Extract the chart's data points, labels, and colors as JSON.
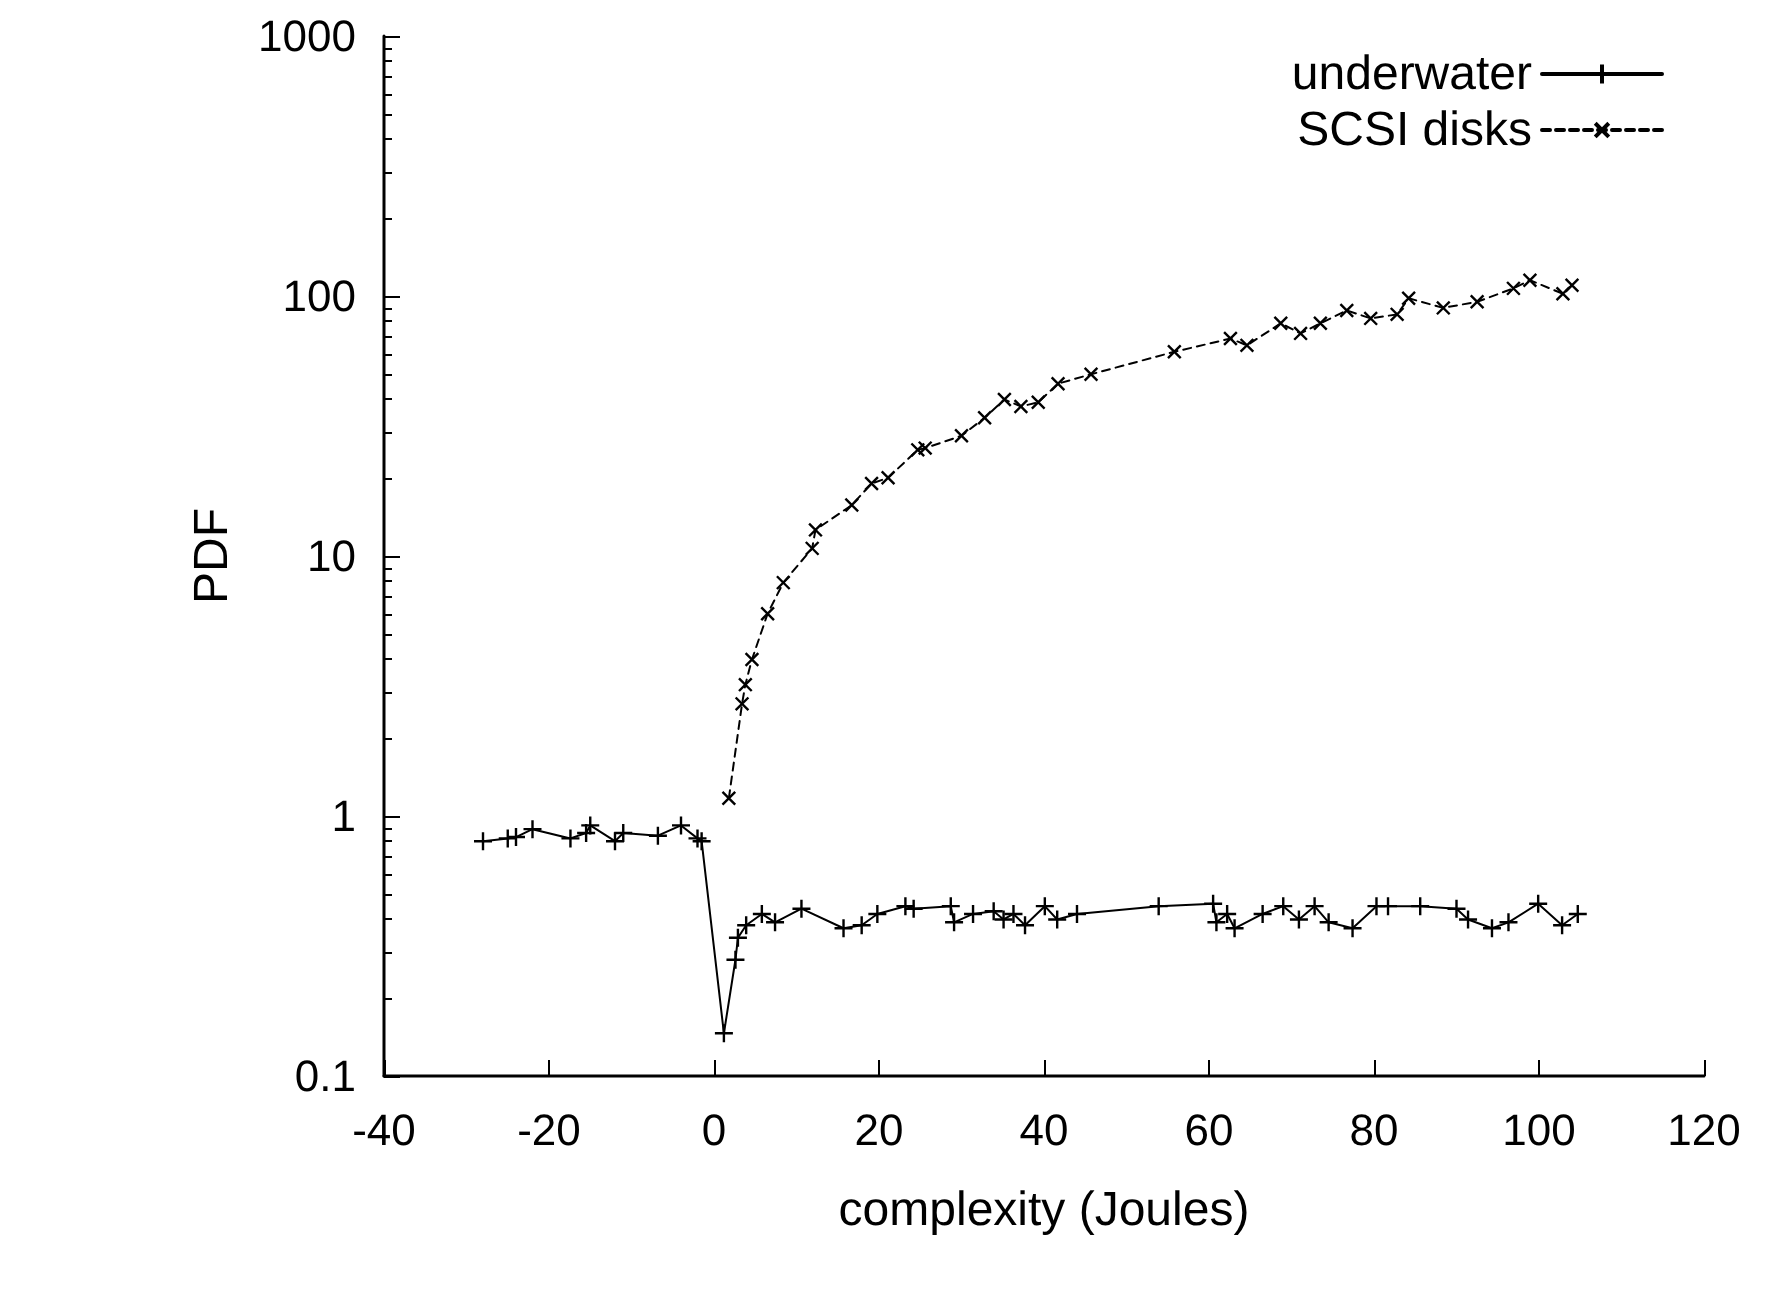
{
  "chart_data": {
    "type": "line",
    "xlabel": "complexity (Joules)",
    "ylabel": "PDF",
    "xlim": [
      -40,
      120
    ],
    "xticks": [
      -40,
      -20,
      0,
      20,
      40,
      60,
      80,
      100,
      120
    ],
    "ylim": [
      0.1,
      1000
    ],
    "yticks": [
      0.1,
      1,
      10,
      100,
      1000
    ],
    "log": "y",
    "grid": false,
    "legend": "top right",
    "series": [
      {
        "name": "underwater",
        "color": "#000000",
        "line_style": "solid",
        "marker": "cross",
        "x": [
          -28,
          -25,
          -24,
          -22,
          -17.4,
          -15.5,
          -15,
          -12,
          -11,
          -6.8,
          -4,
          -2,
          -1.5,
          1.2,
          2.6,
          2.9,
          3.9,
          5.8,
          7.4,
          10.6,
          15.7,
          17.9,
          19.8,
          23.2,
          24.2,
          28.7,
          29.1,
          31.4,
          33.9,
          35.1,
          36.3,
          37.7,
          40.1,
          41.6,
          44,
          53.9,
          60.5,
          60.9,
          62.2,
          63.1,
          66.5,
          69,
          70.9,
          72.8,
          74.5,
          77.4,
          80.3,
          81.7,
          85.6,
          90,
          91.4,
          94.3,
          96.3,
          99.9,
          102.8,
          104.7
        ],
        "values": [
          0.8,
          0.82,
          0.83,
          0.89,
          0.82,
          0.86,
          0.92,
          0.8,
          0.86,
          0.84,
          0.92,
          0.82,
          0.8,
          0.146,
          0.28,
          0.34,
          0.38,
          0.42,
          0.39,
          0.44,
          0.37,
          0.38,
          0.42,
          0.45,
          0.44,
          0.45,
          0.39,
          0.42,
          0.43,
          0.4,
          0.42,
          0.38,
          0.45,
          0.4,
          0.42,
          0.45,
          0.46,
          0.39,
          0.42,
          0.37,
          0.42,
          0.45,
          0.4,
          0.45,
          0.39,
          0.37,
          0.45,
          0.45,
          0.45,
          0.44,
          0.4,
          0.37,
          0.39,
          0.46,
          0.38,
          0.42
        ]
      },
      {
        "name": "SCSI disks",
        "color": "#000000",
        "line_style": "dashed",
        "marker": "cross",
        "x": [
          1.8,
          3.4,
          3.8,
          4.6,
          6.5,
          8.4,
          11.9,
          12.3,
          16.7,
          19.1,
          21.1,
          24.7,
          25.6,
          30,
          32.8,
          35.2,
          37.2,
          39.3,
          41.7,
          45.7,
          55.8,
          62.6,
          64.6,
          68.7,
          71.1,
          73.5,
          76.7,
          79.6,
          82.8,
          84.2,
          88.4,
          92.5,
          96.9,
          98.9,
          102.9,
          104
        ],
        "values": [
          1.17,
          2.7,
          3.2,
          4,
          6,
          7.9,
          10.7,
          12.6,
          15.7,
          19,
          20,
          25.6,
          26,
          29,
          34,
          40,
          37.6,
          39,
          46,
          50,
          61,
          68.6,
          64.6,
          78.5,
          71.8,
          78.5,
          88,
          82,
          85,
          98,
          90,
          95,
          107,
          115,
          102,
          110
        ]
      }
    ]
  }
}
